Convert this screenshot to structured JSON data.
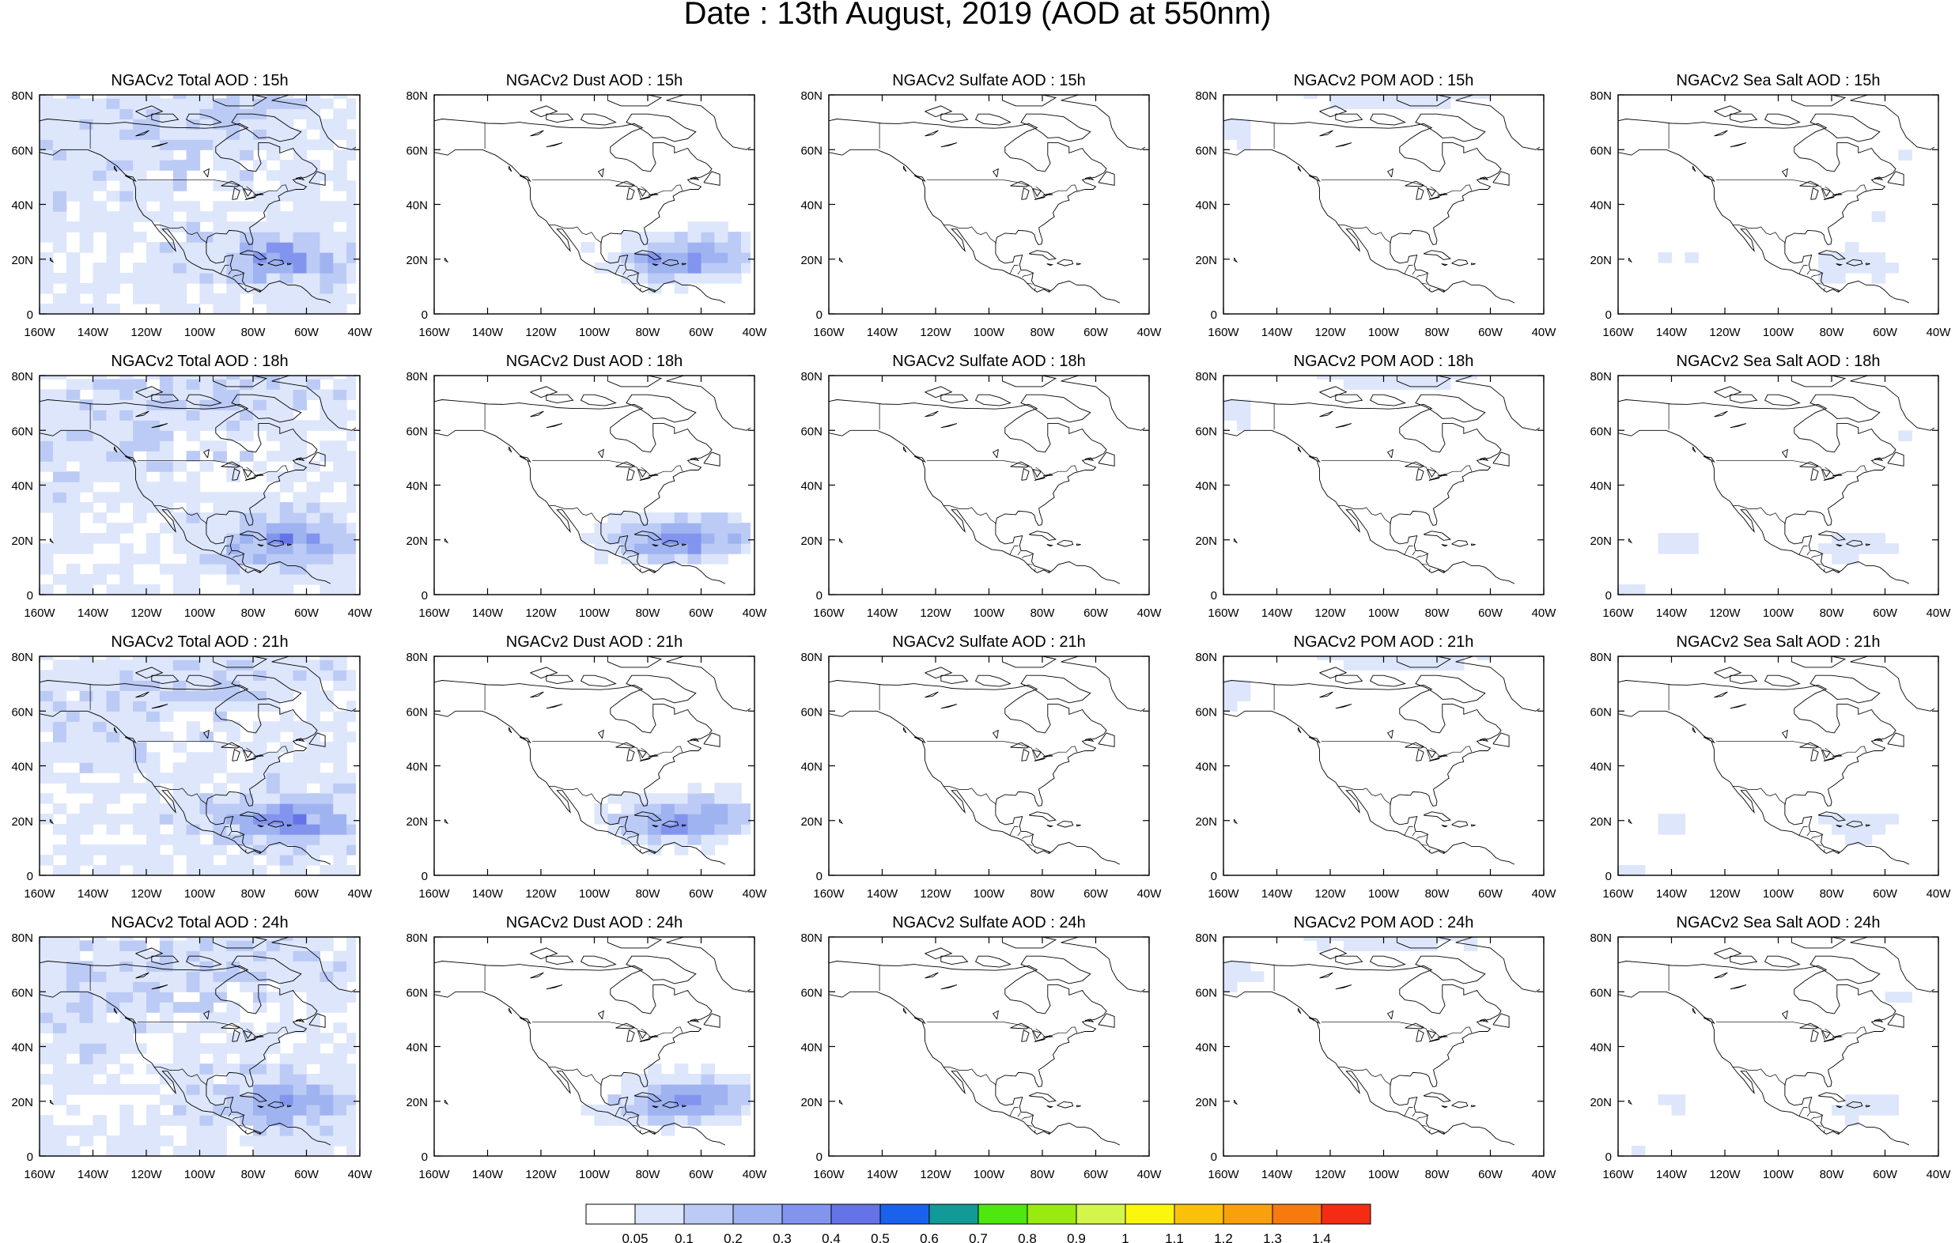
{
  "main_title": "Date : 13th August, 2019 (AOD at 550nm)",
  "panel_titles": [
    [
      "NGACv2 Total AOD : 15h",
      "NGACv2 Dust AOD : 15h",
      "NGACv2 Sulfate AOD : 15h",
      "NGACv2 POM AOD : 15h",
      "NGACv2 Sea Salt AOD : 15h"
    ],
    [
      "NGACv2 Total AOD : 18h",
      "NGACv2 Dust AOD : 18h",
      "NGACv2 Sulfate AOD : 18h",
      "NGACv2 POM AOD : 18h",
      "NGACv2 Sea Salt AOD : 18h"
    ],
    [
      "NGACv2 Total AOD : 21h",
      "NGACv2 Dust AOD : 21h",
      "NGACv2 Sulfate AOD : 21h",
      "NGACv2 POM AOD : 21h",
      "NGACv2 Sea Salt AOD : 21h"
    ],
    [
      "NGACv2 Total AOD : 24h",
      "NGACv2 Dust AOD : 24h",
      "NGACv2 Sulfate AOD : 24h",
      "NGACv2 POM AOD : 24h",
      "NGACv2 Sea Salt  AOD : 24h"
    ]
  ],
  "y_ticks": [
    "80N",
    "60N",
    "40N",
    "20N",
    "0"
  ],
  "x_ticks": [
    "160W",
    "140W",
    "120W",
    "100W",
    "80W",
    "60W",
    "40W"
  ],
  "colorbar": {
    "labels": [
      "0.05",
      "0.1",
      "0.2",
      "0.3",
      "0.4",
      "0.5",
      "0.6",
      "0.7",
      "0.8",
      "0.9",
      "1",
      "1.1",
      "1.2",
      "1.3",
      "1.4"
    ],
    "colors": [
      "#ffffff",
      "#dde6fb",
      "#bccbf5",
      "#9fb3f1",
      "#8294ee",
      "#6474e8",
      "#1a61ee",
      "#119a96",
      "#4ee80e",
      "#99ea0f",
      "#d4f54a",
      "#fbf70c",
      "#fbc00a",
      "#f9a10c",
      "#f67a0c",
      "#f52c14"
    ]
  }
}
